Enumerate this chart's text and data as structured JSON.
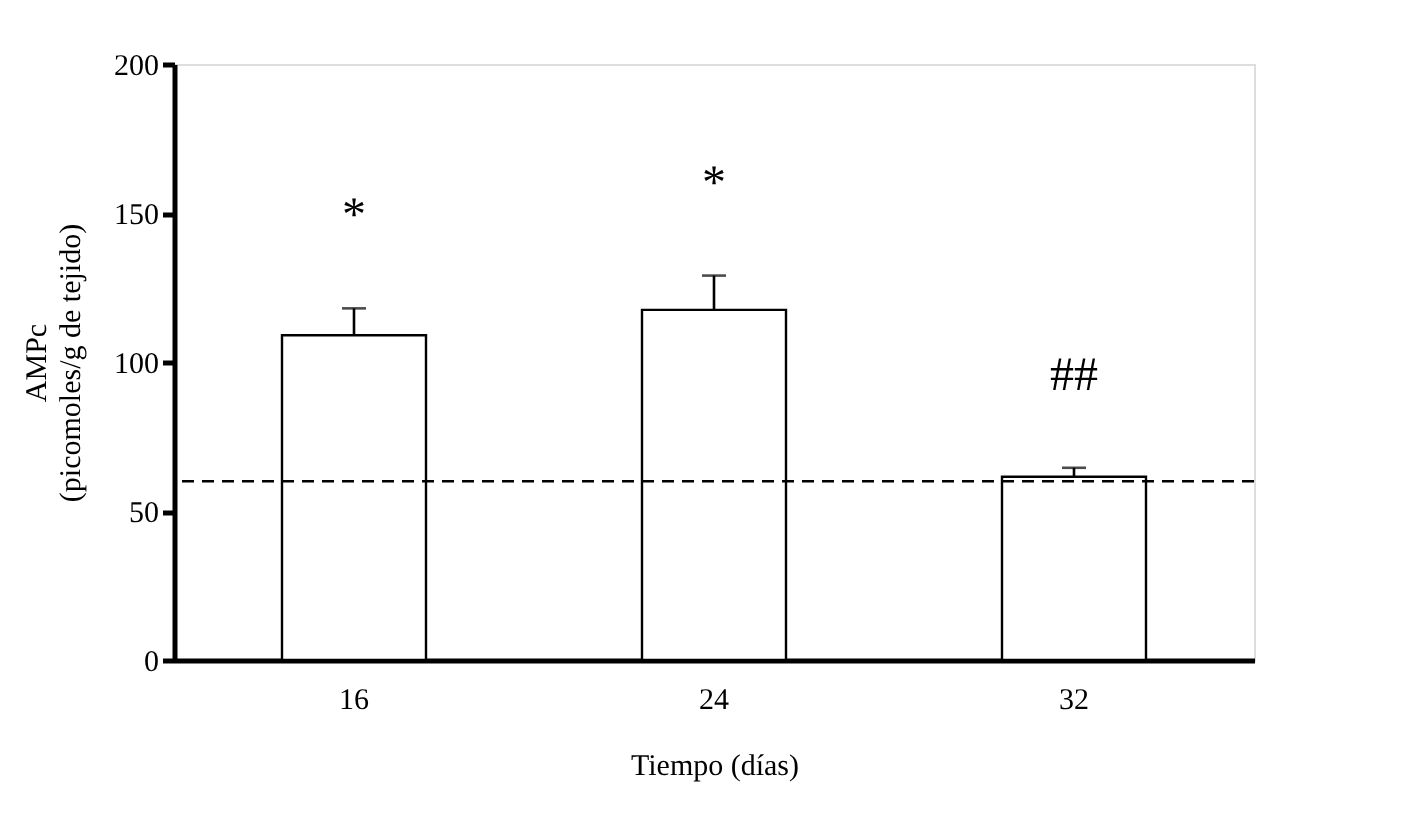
{
  "chart_data": {
    "type": "bar",
    "xlabel": "Tiempo (días)",
    "ylabel": [
      "AMPc",
      "(picomoles/g de tejido)"
    ],
    "categories": [
      "16",
      "24",
      "32"
    ],
    "values": [
      109,
      117.5,
      61.5
    ],
    "errors": [
      [
        109,
        118
      ],
      [
        117.5,
        129
      ],
      [
        61.5,
        64.5
      ]
    ],
    "color": "#ffffff",
    "ylim": [
      0,
      200
    ],
    "yticks": [
      0,
      50,
      100,
      150,
      200
    ],
    "grid": false,
    "ref_lines": [
      {
        "axis": "y",
        "value": 60,
        "line_style": "dashed",
        "color": "#000000"
      }
    ],
    "annotations": [
      "*",
      "*",
      "##"
    ]
  }
}
